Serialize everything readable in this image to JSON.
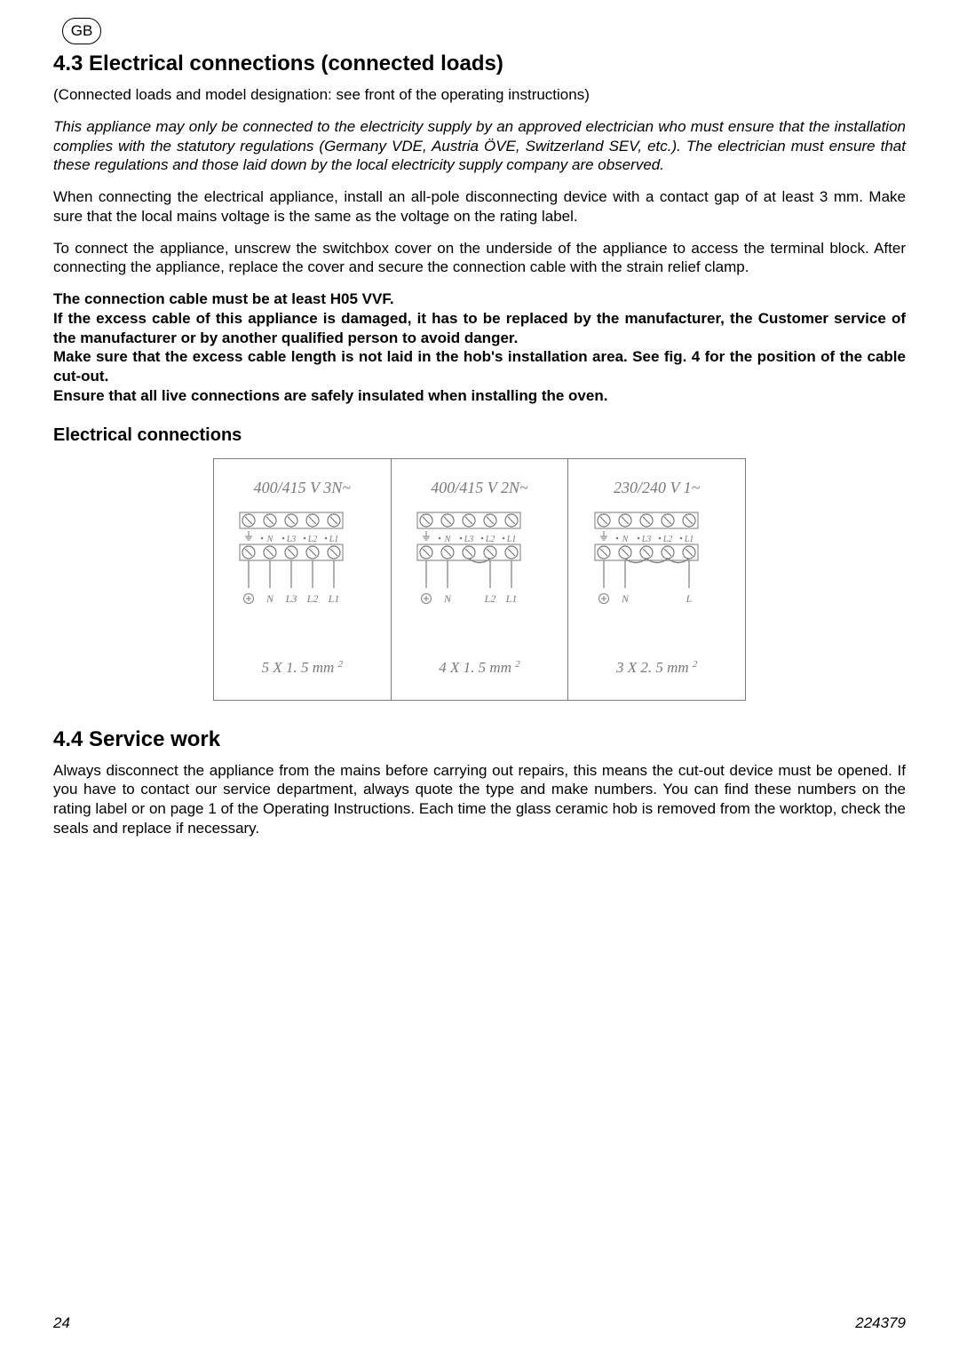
{
  "badge": "GB",
  "section_43": {
    "heading": "4.3  Electrical connections (connected loads)",
    "para1": "(Connected loads and model designation: see front of the operating instructions)",
    "para2": "This appliance may only be connected to the electricity supply by an approved electrician who must ensure that the installation complies with the statutory regulations (Germany VDE, Austria ÖVE, Switzerland SEV, etc.). The electrician must ensure that these regulations and those laid down by the local electricity supply company are observed.",
    "para3": "When connecting the electrical appliance, install an all-pole disconnecting device with a contact gap of at least 3 mm. Make sure that the local mains voltage is the same as the voltage on the rating label.",
    "para4": "To connect the appliance, unscrew the switchbox cover on the underside of the appliance to access the terminal block. After connecting the appliance, replace the cover and secure the connection cable with the strain relief clamp.",
    "bold1": "The connection cable must be at least H05 VVF.",
    "bold2": "If the excess cable of this appliance is damaged, it has to be replaced by the manufacturer, the Customer service of the manufacturer or by another qualified person to avoid danger.",
    "bold3": "Make sure that the excess cable length is not laid in the hob's installation area. See fig. 4 for the position of the cable cut-out.",
    "bold4": "Ensure that all live connections are safely insulated when installing the oven.",
    "subheading": "Electrical connections",
    "diagrams": [
      {
        "voltage": "400/415 V 3N~",
        "wires": [
          "N",
          "L3",
          "L2",
          "L1"
        ],
        "conn_lbls": [
          "⏚",
          "N",
          "L3",
          "L2",
          "L1"
        ],
        "cable": "5 X 1. 5 mm",
        "bridges": []
      },
      {
        "voltage": "400/415 V 2N~",
        "wires": [
          "N",
          "",
          "L2",
          "L1"
        ],
        "conn_lbls": [
          "⏚",
          "N",
          "",
          "L2",
          "L1"
        ],
        "cable": "4 X 1. 5 mm",
        "bridges": [
          [
            2,
            3
          ]
        ]
      },
      {
        "voltage": "230/240 V 1~",
        "wires": [
          "N",
          "",
          "",
          "L"
        ],
        "conn_lbls": [
          "⏚",
          "N",
          "",
          "",
          "L"
        ],
        "cable": "3 X 2. 5 mm",
        "bridges": [
          [
            1,
            2
          ],
          [
            2,
            3
          ],
          [
            3,
            4
          ]
        ]
      }
    ],
    "terminal_labels": [
      "⏚",
      "N",
      "L3",
      "L2",
      "L1"
    ]
  },
  "section_44": {
    "heading": "4.4  Service work",
    "para": "Always disconnect the appliance from the mains before carrying out repairs, this means the cut-out device must be opened. If you have to contact our service department, always quote the type and make numbers. You can find these numbers on the rating label or on page 1 of the Operating Instructions. Each time the glass ceramic hob is removed from the worktop, check the seals and replace if necessary."
  },
  "footer": {
    "page": "24",
    "docnum": "224379"
  },
  "colors": {
    "text": "#000000",
    "gray": "#7a7a7a",
    "border": "#7a7a7a"
  }
}
